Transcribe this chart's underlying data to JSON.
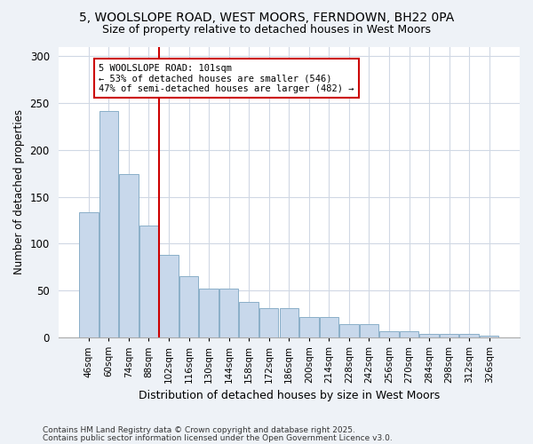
{
  "title_line1": "5, WOOLSLOPE ROAD, WEST MOORS, FERNDOWN, BH22 0PA",
  "title_line2": "Size of property relative to detached houses in West Moors",
  "xlabel": "Distribution of detached houses by size in West Moors",
  "ylabel": "Number of detached properties",
  "categories": [
    "46sqm",
    "60sqm",
    "74sqm",
    "88sqm",
    "102sqm",
    "116sqm",
    "130sqm",
    "144sqm",
    "158sqm",
    "172sqm",
    "186sqm",
    "200sqm",
    "214sqm",
    "228sqm",
    "242sqm",
    "256sqm",
    "270sqm",
    "284sqm",
    "298sqm",
    "312sqm",
    "326sqm"
  ],
  "values": [
    133,
    241,
    174,
    119,
    88,
    65,
    52,
    52,
    38,
    31,
    31,
    22,
    22,
    14,
    14,
    7,
    7,
    4,
    4,
    4,
    2
  ],
  "bar_color": "#c8d8eb",
  "bar_edge_color": "#8aafc8",
  "highlight_color": "#cc0000",
  "annotation_text": "5 WOOLSLOPE ROAD: 101sqm\n← 53% of detached houses are smaller (546)\n47% of semi-detached houses are larger (482) →",
  "annotation_box_color": "#cc0000",
  "ylim": [
    0,
    310
  ],
  "yticks": [
    0,
    50,
    100,
    150,
    200,
    250,
    300
  ],
  "footnote1": "Contains HM Land Registry data © Crown copyright and database right 2025.",
  "footnote2": "Contains public sector information licensed under the Open Government Licence v3.0.",
  "background_color": "#eef2f7",
  "plot_bg_color": "#ffffff",
  "grid_color": "#d0d8e4"
}
